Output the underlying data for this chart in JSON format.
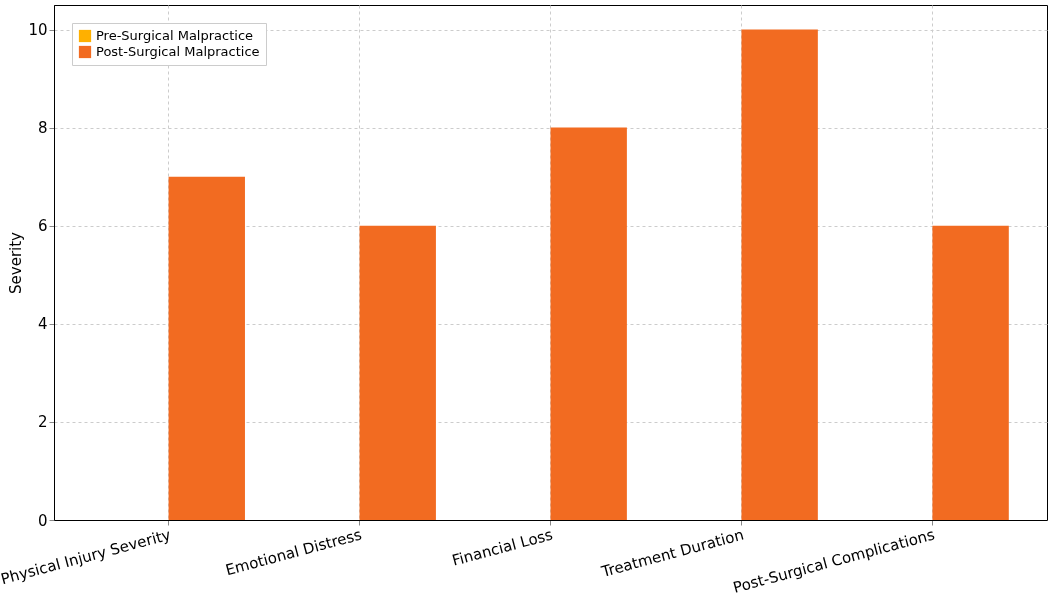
{
  "chart_data": {
    "type": "bar",
    "ylabel": "Severity",
    "categories": [
      "Physical Injury Severity",
      "Emotional Distress",
      "Financial Loss",
      "Treatment Duration",
      "Post-Surgical Complications"
    ],
    "series": [
      {
        "name": "Pre-Surgical Malpractice",
        "color": "#ffb000",
        "values": [
          0,
          0,
          0,
          0,
          0
        ]
      },
      {
        "name": "Post-Surgical Malpractice",
        "color": "#f26b21",
        "values": [
          7,
          6,
          8,
          10,
          6
        ]
      }
    ],
    "ylim": [
      0,
      10.5
    ],
    "yticks": [
      0,
      2,
      4,
      6,
      8,
      10
    ],
    "grid": true,
    "legend": "top left"
  }
}
